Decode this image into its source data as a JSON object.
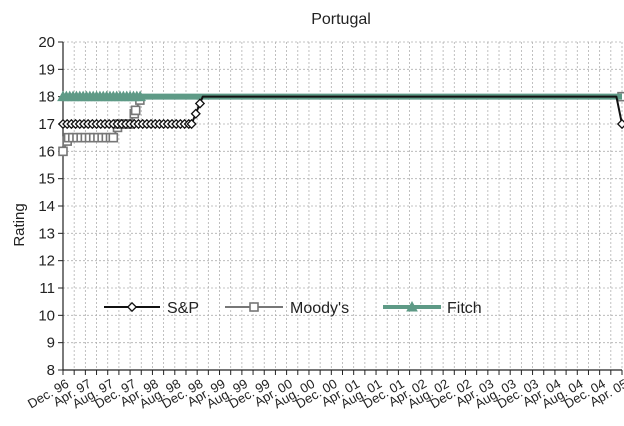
{
  "chart_data": {
    "type": "line",
    "title": "Portugal",
    "ylabel": "Rating",
    "xlabel": "",
    "ylim": [
      8,
      20
    ],
    "yticks": [
      8,
      9,
      10,
      11,
      12,
      13,
      14,
      15,
      16,
      17,
      18,
      19,
      20
    ],
    "grid": true,
    "legend_position": "lower-center",
    "x_tick_labels": [
      "Dec. 96",
      "Apr. 97",
      "Aug. 97",
      "Dec. 97",
      "Apr. 98",
      "Aug. 98",
      "Dec. 98",
      "Apr. 99",
      "Aug. 99",
      "Dec. 99",
      "Apr. 00",
      "Aug. 00",
      "Dec. 00",
      "Apr. 01",
      "Aug. 01",
      "Dec. 01",
      "Apr. 02",
      "Aug. 02",
      "Dec. 02",
      "Apr. 03",
      "Aug. 03",
      "Dec. 03",
      "Apr. 04",
      "Aug. 04",
      "Dec. 04",
      "Apr. 05"
    ],
    "series": [
      {
        "name": "S&P",
        "color": "#111111",
        "marker": "diamond",
        "points": [
          {
            "x": "Dec. 96",
            "y": 17
          },
          {
            "x": "Nov. 98",
            "y": 17
          },
          {
            "x": "Jan. 99",
            "y": 18
          },
          {
            "x": "Mar. 05",
            "y": 18
          },
          {
            "x": "Apr. 05",
            "y": 17
          }
        ]
      },
      {
        "name": "Moody's",
        "color": "#777777",
        "marker": "square",
        "points": [
          {
            "x": "Dec. 96",
            "y": 16
          },
          {
            "x": "Jan. 97",
            "y": 16.5
          },
          {
            "x": "Sep. 97",
            "y": 16.5
          },
          {
            "x": "Oct. 97",
            "y": 17
          },
          {
            "x": "Dec. 97",
            "y": 17
          },
          {
            "x": "Jan. 98",
            "y": 17.5
          },
          {
            "x": "Feb. 98",
            "y": 18
          },
          {
            "x": "Apr. 05",
            "y": 18
          }
        ]
      },
      {
        "name": "Fitch",
        "color": "#5e9a86",
        "marker": "triangle",
        "points": [
          {
            "x": "Dec. 96",
            "y": 18
          },
          {
            "x": "Apr. 05",
            "y": 18
          }
        ]
      }
    ]
  }
}
